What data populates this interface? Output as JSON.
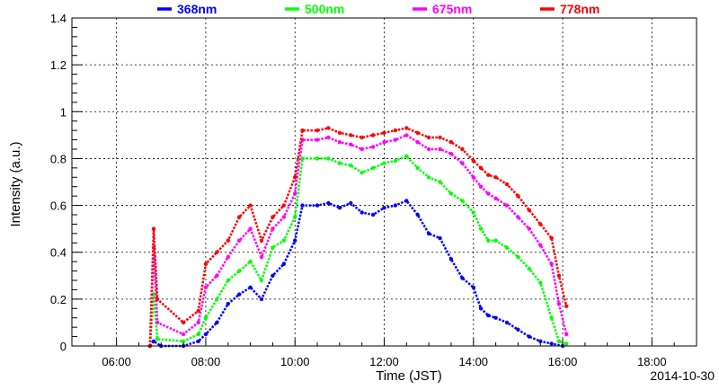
{
  "chart_data": {
    "type": "scatter",
    "xlabel": "Time (JST)",
    "ylabel": "Intensity (a.u.)",
    "date": "2014-10-30",
    "xlim": [
      "05:00",
      "19:00"
    ],
    "ylim": [
      0,
      1.4
    ],
    "x_ticks": [
      "06:00",
      "08:00",
      "10:00",
      "12:00",
      "14:00",
      "16:00",
      "18:00"
    ],
    "y_ticks": [
      "0",
      "0.2",
      "0.4",
      "0.6",
      "0.8",
      "1",
      "1.2",
      "1.4"
    ],
    "grid": true,
    "legend_position": "top",
    "series": [
      {
        "name": "368nm",
        "color": "#0000ff",
        "points": [
          [
            "06:45",
            0.0
          ],
          [
            "06:50",
            0.02
          ],
          [
            "07:00",
            0.0
          ],
          [
            "07:30",
            0.0
          ],
          [
            "07:50",
            0.02
          ],
          [
            "08:00",
            0.05
          ],
          [
            "08:15",
            0.1
          ],
          [
            "08:30",
            0.18
          ],
          [
            "08:45",
            0.22
          ],
          [
            "09:00",
            0.25
          ],
          [
            "09:15",
            0.2
          ],
          [
            "09:30",
            0.3
          ],
          [
            "09:45",
            0.35
          ],
          [
            "10:00",
            0.45
          ],
          [
            "10:10",
            0.6
          ],
          [
            "10:30",
            0.6
          ],
          [
            "10:45",
            0.61
          ],
          [
            "11:00",
            0.59
          ],
          [
            "11:15",
            0.61
          ],
          [
            "11:30",
            0.57
          ],
          [
            "11:45",
            0.56
          ],
          [
            "12:00",
            0.59
          ],
          [
            "12:15",
            0.6
          ],
          [
            "12:30",
            0.62
          ],
          [
            "12:45",
            0.56
          ],
          [
            "13:00",
            0.48
          ],
          [
            "13:15",
            0.46
          ],
          [
            "13:30",
            0.37
          ],
          [
            "13:45",
            0.29
          ],
          [
            "14:00",
            0.25
          ],
          [
            "14:10",
            0.16
          ],
          [
            "14:20",
            0.13
          ],
          [
            "14:30",
            0.12
          ],
          [
            "14:45",
            0.1
          ],
          [
            "15:00",
            0.07
          ],
          [
            "15:15",
            0.04
          ],
          [
            "15:30",
            0.02
          ],
          [
            "15:45",
            0.01
          ],
          [
            "16:00",
            0.0
          ]
        ]
      },
      {
        "name": "500nm",
        "color": "#00ff00",
        "points": [
          [
            "06:45",
            0.0
          ],
          [
            "06:50",
            0.22
          ],
          [
            "06:55",
            0.03
          ],
          [
            "07:30",
            0.02
          ],
          [
            "07:50",
            0.05
          ],
          [
            "08:00",
            0.12
          ],
          [
            "08:15",
            0.2
          ],
          [
            "08:30",
            0.28
          ],
          [
            "08:45",
            0.32
          ],
          [
            "09:00",
            0.36
          ],
          [
            "09:15",
            0.28
          ],
          [
            "09:30",
            0.42
          ],
          [
            "09:45",
            0.45
          ],
          [
            "10:00",
            0.55
          ],
          [
            "10:10",
            0.8
          ],
          [
            "10:30",
            0.8
          ],
          [
            "10:45",
            0.8
          ],
          [
            "11:00",
            0.78
          ],
          [
            "11:15",
            0.77
          ],
          [
            "11:30",
            0.74
          ],
          [
            "11:45",
            0.76
          ],
          [
            "12:00",
            0.78
          ],
          [
            "12:15",
            0.79
          ],
          [
            "12:30",
            0.81
          ],
          [
            "12:45",
            0.76
          ],
          [
            "13:00",
            0.72
          ],
          [
            "13:15",
            0.7
          ],
          [
            "13:30",
            0.65
          ],
          [
            "13:45",
            0.62
          ],
          [
            "14:00",
            0.57
          ],
          [
            "14:10",
            0.5
          ],
          [
            "14:20",
            0.45
          ],
          [
            "14:30",
            0.45
          ],
          [
            "14:45",
            0.42
          ],
          [
            "15:00",
            0.38
          ],
          [
            "15:15",
            0.33
          ],
          [
            "15:30",
            0.27
          ],
          [
            "15:45",
            0.12
          ],
          [
            "15:55",
            0.02
          ],
          [
            "16:05",
            0.01
          ]
        ]
      },
      {
        "name": "675nm",
        "color": "#ff00ff",
        "points": [
          [
            "06:45",
            0.0
          ],
          [
            "06:50",
            0.42
          ],
          [
            "06:55",
            0.1
          ],
          [
            "07:30",
            0.05
          ],
          [
            "07:50",
            0.1
          ],
          [
            "08:00",
            0.25
          ],
          [
            "08:15",
            0.3
          ],
          [
            "08:30",
            0.38
          ],
          [
            "08:45",
            0.45
          ],
          [
            "09:00",
            0.5
          ],
          [
            "09:15",
            0.38
          ],
          [
            "09:30",
            0.5
          ],
          [
            "09:45",
            0.55
          ],
          [
            "10:00",
            0.65
          ],
          [
            "10:10",
            0.88
          ],
          [
            "10:30",
            0.88
          ],
          [
            "10:45",
            0.89
          ],
          [
            "11:00",
            0.87
          ],
          [
            "11:15",
            0.86
          ],
          [
            "11:30",
            0.84
          ],
          [
            "11:45",
            0.85
          ],
          [
            "12:00",
            0.87
          ],
          [
            "12:15",
            0.88
          ],
          [
            "12:30",
            0.9
          ],
          [
            "12:45",
            0.87
          ],
          [
            "13:00",
            0.84
          ],
          [
            "13:15",
            0.84
          ],
          [
            "13:30",
            0.82
          ],
          [
            "13:45",
            0.78
          ],
          [
            "14:00",
            0.72
          ],
          [
            "14:10",
            0.68
          ],
          [
            "14:20",
            0.65
          ],
          [
            "14:30",
            0.63
          ],
          [
            "14:45",
            0.6
          ],
          [
            "15:00",
            0.55
          ],
          [
            "15:15",
            0.5
          ],
          [
            "15:30",
            0.43
          ],
          [
            "15:45",
            0.35
          ],
          [
            "15:55",
            0.18
          ],
          [
            "16:05",
            0.05
          ]
        ]
      },
      {
        "name": "778nm",
        "color": "#ff0000",
        "points": [
          [
            "06:45",
            0.0
          ],
          [
            "06:50",
            0.5
          ],
          [
            "06:55",
            0.2
          ],
          [
            "07:30",
            0.1
          ],
          [
            "07:50",
            0.15
          ],
          [
            "08:00",
            0.35
          ],
          [
            "08:15",
            0.4
          ],
          [
            "08:30",
            0.45
          ],
          [
            "08:45",
            0.55
          ],
          [
            "09:00",
            0.6
          ],
          [
            "09:15",
            0.45
          ],
          [
            "09:30",
            0.55
          ],
          [
            "09:45",
            0.6
          ],
          [
            "10:00",
            0.72
          ],
          [
            "10:10",
            0.92
          ],
          [
            "10:30",
            0.92
          ],
          [
            "10:45",
            0.93
          ],
          [
            "11:00",
            0.91
          ],
          [
            "11:15",
            0.9
          ],
          [
            "11:30",
            0.89
          ],
          [
            "11:45",
            0.9
          ],
          [
            "12:00",
            0.91
          ],
          [
            "12:15",
            0.92
          ],
          [
            "12:30",
            0.93
          ],
          [
            "12:45",
            0.91
          ],
          [
            "13:00",
            0.89
          ],
          [
            "13:15",
            0.89
          ],
          [
            "13:30",
            0.87
          ],
          [
            "13:45",
            0.84
          ],
          [
            "14:00",
            0.79
          ],
          [
            "14:10",
            0.76
          ],
          [
            "14:20",
            0.73
          ],
          [
            "14:30",
            0.72
          ],
          [
            "14:45",
            0.69
          ],
          [
            "15:00",
            0.64
          ],
          [
            "15:15",
            0.58
          ],
          [
            "15:30",
            0.52
          ],
          [
            "15:45",
            0.46
          ],
          [
            "15:55",
            0.3
          ],
          [
            "16:05",
            0.17
          ]
        ]
      }
    ]
  }
}
